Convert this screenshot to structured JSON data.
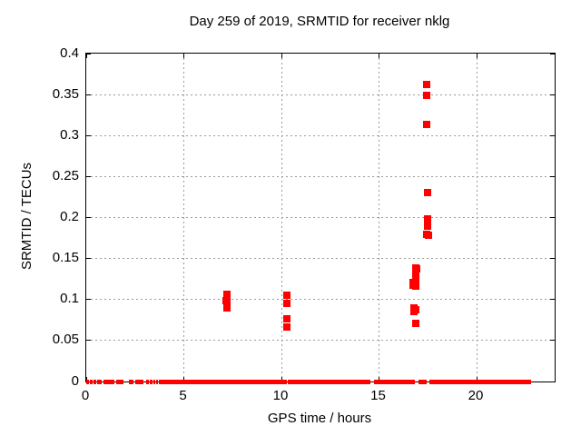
{
  "chart_data": {
    "type": "scatter",
    "title": "Day 259 of 2019, SRMTID for receiver nklg",
    "xlabel": "GPS time / hours",
    "ylabel": "SRMTID / TECUs",
    "xlim": [
      0,
      24
    ],
    "ylim": [
      0,
      0.4
    ],
    "grid": true,
    "legend": "none",
    "marker": "plus",
    "colors": {
      "marker": "#ff0000",
      "grid": "#9a9a9a",
      "axis": "#000000",
      "background": "#ffffff"
    },
    "xticks": [
      {
        "v": 0,
        "label": "0"
      },
      {
        "v": 5,
        "label": "5"
      },
      {
        "v": 10,
        "label": "10"
      },
      {
        "v": 15,
        "label": "15"
      },
      {
        "v": 20,
        "label": "20"
      }
    ],
    "yticks": [
      {
        "v": 0,
        "label": "0"
      },
      {
        "v": 0.05,
        "label": "0.05"
      },
      {
        "v": 0.1,
        "label": "0.1"
      },
      {
        "v": 0.15,
        "label": "0.15"
      },
      {
        "v": 0.2,
        "label": "0.2"
      },
      {
        "v": 0.25,
        "label": "0.25"
      },
      {
        "v": 0.3,
        "label": "0.3"
      },
      {
        "v": 0.35,
        "label": "0.35"
      },
      {
        "v": 0.4,
        "label": "0.4"
      }
    ],
    "points": [
      [
        7.19,
        0.106
      ],
      [
        7.21,
        0.101
      ],
      [
        7.17,
        0.099
      ],
      [
        7.21,
        0.097
      ],
      [
        7.19,
        0.094
      ],
      [
        7.19,
        0.09
      ],
      [
        10.28,
        0.105
      ],
      [
        10.28,
        0.095
      ],
      [
        10.28,
        0.077
      ],
      [
        10.28,
        0.067
      ],
      [
        16.88,
        0.138
      ],
      [
        16.95,
        0.137
      ],
      [
        16.88,
        0.133
      ],
      [
        16.9,
        0.13
      ],
      [
        16.88,
        0.127
      ],
      [
        16.9,
        0.124
      ],
      [
        16.76,
        0.121
      ],
      [
        16.88,
        0.12
      ],
      [
        16.76,
        0.118
      ],
      [
        16.88,
        0.116
      ],
      [
        16.79,
        0.09
      ],
      [
        16.9,
        0.088
      ],
      [
        16.79,
        0.085
      ],
      [
        16.88,
        0.071
      ],
      [
        17.44,
        0.362
      ],
      [
        17.44,
        0.349
      ],
      [
        17.44,
        0.314
      ],
      [
        17.5,
        0.231
      ],
      [
        17.47,
        0.198
      ],
      [
        17.47,
        0.189
      ],
      [
        17.46,
        0.179
      ],
      [
        17.52,
        0.178
      ]
    ],
    "zero_band_segments": [
      [
        0.0,
        0.12
      ],
      [
        0.2,
        0.33
      ],
      [
        0.38,
        0.5
      ],
      [
        0.55,
        0.77
      ],
      [
        0.88,
        1.42
      ],
      [
        1.53,
        1.93
      ],
      [
        2.2,
        2.42
      ],
      [
        2.5,
        2.95
      ],
      [
        3.05,
        3.2
      ],
      [
        3.27,
        3.4
      ],
      [
        3.44,
        3.52
      ],
      [
        3.56,
        3.66
      ],
      [
        3.7,
        10.26
      ],
      [
        10.34,
        14.57
      ],
      [
        14.75,
        16.86
      ],
      [
        17.03,
        17.45
      ],
      [
        17.58,
        22.8
      ]
    ]
  }
}
